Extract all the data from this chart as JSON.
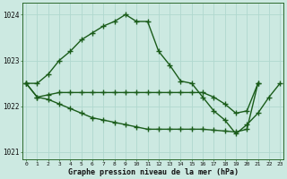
{
  "title": "Graphe pression niveau de la mer (hPa)",
  "hours": [
    0,
    1,
    2,
    3,
    4,
    5,
    6,
    7,
    8,
    9,
    10,
    11,
    12,
    13,
    14,
    15,
    16,
    17,
    18,
    19,
    20,
    21,
    22,
    23
  ],
  "line1": [
    1022.5,
    1022.5,
    1022.7,
    1023.0,
    1023.2,
    1023.45,
    1023.6,
    1023.75,
    1023.85,
    1024.0,
    1023.85,
    1023.85,
    1023.2,
    1022.9,
    1022.55,
    1022.5,
    1022.2,
    1021.9,
    1021.7,
    1021.4,
    1021.6,
    1021.85,
    1022.2,
    1022.5
  ],
  "line2": [
    1022.5,
    1022.2,
    1022.25,
    1022.3,
    1022.3,
    1022.3,
    1022.3,
    1022.3,
    1022.3,
    1022.3,
    1022.3,
    1022.3,
    1022.3,
    1022.3,
    1022.3,
    1022.3,
    1022.3,
    1022.2,
    1022.05,
    1021.85,
    1021.9,
    1022.5
  ],
  "line3": [
    1022.5,
    1022.2,
    1022.15,
    1022.05,
    1021.95,
    1021.85,
    1021.75,
    1021.7,
    1021.65,
    1021.6,
    1021.55,
    1021.5,
    1021.5,
    1021.5,
    1021.5,
    1021.5,
    1021.5,
    1021.48,
    1021.46,
    1021.44,
    1021.5,
    1022.5
  ],
  "hours2": [
    0,
    1,
    2,
    3,
    4,
    5,
    6,
    7,
    8,
    9,
    10,
    11,
    12,
    13,
    14,
    15,
    16,
    17,
    18,
    19,
    20,
    21
  ],
  "hours3": [
    0,
    1,
    2,
    3,
    4,
    5,
    6,
    7,
    8,
    9,
    10,
    11,
    12,
    13,
    14,
    15,
    16,
    17,
    18,
    19,
    20,
    21
  ],
  "ylim": [
    1020.85,
    1024.25
  ],
  "yticks": [
    1021,
    1022,
    1023,
    1024
  ],
  "bg_color": "#cce9e1",
  "grid_color": "#b0d8ce",
  "line_color": "#1a5c1a",
  "marker": "+",
  "marker_size": 4,
  "line_width": 1.0
}
